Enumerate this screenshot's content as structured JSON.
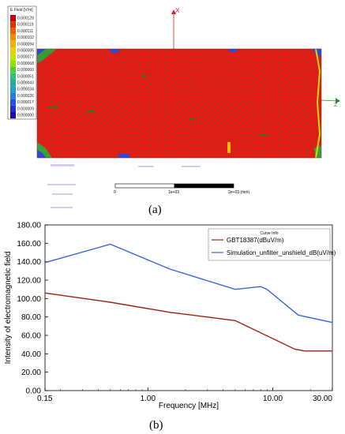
{
  "figure_a": {
    "colorbar": {
      "title": "E Field [V/m]",
      "levels": [
        "0.000128",
        "0.000119",
        "0.000111",
        "0.000102",
        "0.000094",
        "0.000085",
        "0.000077",
        "0.000068",
        "0.000060",
        "0.000051",
        "0.000043",
        "0.000034",
        "0.000026",
        "0.000017",
        "0.000009",
        "0.000000"
      ],
      "colors": [
        "#cc0000",
        "#e03000",
        "#f06000",
        "#f09000",
        "#f0b000",
        "#e8d000",
        "#c8e000",
        "#90e000",
        "#50d030",
        "#30c070",
        "#20b0a0",
        "#20a0c8",
        "#2080e0",
        "#2050e8",
        "#2030d0",
        "#1010b0"
      ]
    },
    "axis_x_label": "X",
    "axis_z_label": "Z",
    "scale_bar": {
      "labels": [
        "0",
        "1e+03",
        "2e+03 (mm)"
      ]
    },
    "panel_label": "(a)"
  },
  "figure_b": {
    "panel_label": "(b)",
    "legend_title": "Curve Info",
    "chart_data": {
      "type": "line",
      "xlabel": "Frequency [MHz]",
      "ylabel": "Intensity of electromagnetic field",
      "xscale": "log",
      "xlim": [
        0.15,
        30
      ],
      "ylim": [
        0,
        180
      ],
      "x_tick_labels": [
        "0.15",
        "1.00",
        "10.00",
        "30.00"
      ],
      "x_ticks": [
        0.15,
        1,
        10,
        30
      ],
      "y_tick_labels": [
        "0.00",
        "20.00",
        "40.00",
        "60.00",
        "80.00",
        "100.00",
        "120.00",
        "140.00",
        "160.00",
        "180.00"
      ],
      "y_ticks": [
        0,
        20,
        40,
        60,
        80,
        100,
        120,
        140,
        160,
        180
      ],
      "legend_position": "top-right",
      "series": [
        {
          "name": "GBT18387(dBuV/m)",
          "color": "#a02010",
          "x": [
            0.15,
            0.5,
            1.5,
            5,
            15,
            18,
            30
          ],
          "y": [
            106,
            96,
            85,
            76,
            45,
            43,
            43
          ]
        },
        {
          "name": "Simulation_unfilter_unshield_dB(uV/m)",
          "color": "#3366dd",
          "x": [
            0.15,
            0.5,
            1.5,
            5,
            8,
            9,
            16,
            30
          ],
          "y": [
            139,
            159,
            132,
            110,
            113,
            110,
            82,
            74
          ]
        }
      ]
    }
  }
}
